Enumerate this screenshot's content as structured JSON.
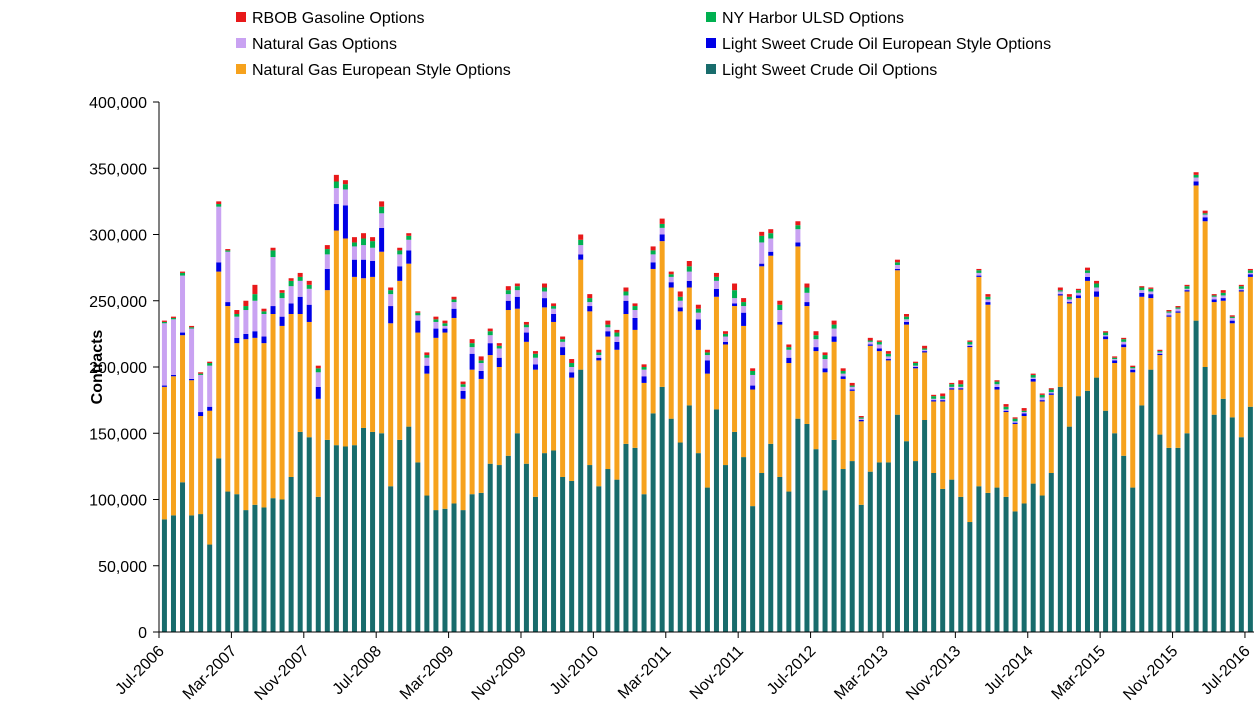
{
  "chart_data": {
    "type": "stacked_bar",
    "y_label": "Contracts",
    "categories": [
      "Jul-2006",
      null,
      null,
      null,
      null,
      null,
      null,
      null,
      "Mar-2007",
      null,
      null,
      null,
      null,
      null,
      null,
      null,
      "Nov-2007",
      null,
      null,
      null,
      null,
      null,
      null,
      null,
      "Jul-2008",
      null,
      null,
      null,
      null,
      null,
      null,
      null,
      "Mar-2009",
      null,
      null,
      null,
      null,
      null,
      null,
      null,
      "Nov-2009",
      null,
      null,
      null,
      null,
      null,
      null,
      null,
      "Jul-2010",
      null,
      null,
      null,
      null,
      null,
      null,
      null,
      "Mar-2011",
      null,
      null,
      null,
      null,
      null,
      null,
      null,
      "Nov-2011",
      null,
      null,
      null,
      null,
      null,
      null,
      null,
      "Jul-2012",
      null,
      null,
      null,
      null,
      null,
      null,
      null,
      "Mar-2013",
      null,
      null,
      null,
      null,
      null,
      null,
      null,
      "Nov-2013",
      null,
      null,
      null,
      null,
      null,
      null,
      null,
      "Jul-2014",
      null,
      null,
      null,
      null,
      null,
      null,
      null,
      "Mar-2015",
      null,
      null,
      null,
      null,
      null,
      null,
      null,
      "Nov-2015",
      null,
      null,
      null,
      null,
      null,
      null,
      null,
      "Jul-2016"
    ],
    "ylim": [
      0,
      400000
    ],
    "yticks": [
      0,
      {
        "value": 50000,
        "label": "50,000"
      },
      {
        "value": 100000,
        "label": "100,000"
      },
      {
        "value": 150000,
        "label": "150,000"
      },
      {
        "value": 200000,
        "label": "200,000"
      },
      {
        "value": 250000,
        "label": "250,000"
      },
      {
        "value": 300000,
        "label": "300,000"
      },
      {
        "value": 350000,
        "label": "350,000"
      },
      {
        "value": 400000,
        "label": "400,000"
      }
    ],
    "series": [
      {
        "name": "Light Sweet Crude Oil Options",
        "color": "#186c6c",
        "values": [
          85000,
          88000,
          113000,
          88000,
          89000,
          66000,
          131000,
          106000,
          104000,
          92000,
          96000,
          94000,
          101000,
          100000,
          117000,
          151000,
          147000,
          102000,
          145000,
          141000,
          140000,
          141000,
          154000,
          151000,
          150000,
          110000,
          145000,
          155000,
          128000,
          103000,
          92000,
          93000,
          97000,
          92000,
          104000,
          105000,
          127000,
          126000,
          133000,
          150000,
          127000,
          102000,
          135000,
          137000,
          117000,
          114000,
          198000,
          126000,
          110000,
          123000,
          115000,
          142000,
          139000,
          104000,
          165000,
          185000,
          161000,
          143000,
          171000,
          135000,
          109000,
          168000,
          126000,
          151000,
          132000,
          95000,
          120000,
          142000,
          117000,
          106000,
          161000,
          157000,
          138000,
          107000,
          145000,
          123000,
          129000,
          96000,
          121000,
          128000,
          128000,
          164000,
          144000,
          129000,
          160000,
          120000,
          108000,
          115000,
          102000,
          83000,
          110000,
          105000,
          109000,
          102000,
          91000,
          97000,
          112000,
          103000,
          120000,
          185000,
          155000,
          178000,
          182000,
          192000,
          167000,
          150000,
          133000,
          109000,
          171000,
          198000,
          149000,
          139000,
          139000,
          150000,
          235000,
          200000,
          164000,
          176000,
          162000,
          147000,
          170000
        ]
      },
      {
        "name": "Natural Gas European Style Options",
        "color": "#f6a21d",
        "values": [
          100000,
          105000,
          111000,
          102000,
          74000,
          101000,
          141000,
          140000,
          114000,
          129000,
          126000,
          124000,
          139000,
          131000,
          123000,
          89000,
          87000,
          74000,
          113000,
          162000,
          157000,
          127000,
          113000,
          117000,
          137000,
          123000,
          120000,
          123000,
          98000,
          92000,
          130000,
          133000,
          140000,
          84000,
          94000,
          86000,
          82000,
          74000,
          110000,
          94000,
          92000,
          96000,
          110000,
          97000,
          92000,
          78000,
          83000,
          116000,
          95000,
          100000,
          98000,
          98000,
          89000,
          84000,
          109000,
          110000,
          99000,
          99000,
          89000,
          93000,
          86000,
          85000,
          91000,
          95000,
          99000,
          88000,
          156000,
          142000,
          115000,
          97000,
          130000,
          89000,
          74000,
          89000,
          74000,
          68000,
          53000,
          63000,
          95000,
          84000,
          77000,
          109000,
          88000,
          70000,
          51000,
          54000,
          66000,
          68000,
          81000,
          132000,
          158000,
          142000,
          74000,
          64000,
          66000,
          66000,
          77000,
          71000,
          59000,
          69000,
          93000,
          74000,
          83000,
          61000,
          54000,
          53000,
          82000,
          87000,
          82000,
          54000,
          60000,
          99000,
          102000,
          107000,
          102000,
          110000,
          85000,
          74000,
          71000,
          110000,
          98000
        ]
      },
      {
        "name": "Light Sweet Crude Oil European Style Options",
        "color": "#0000e6",
        "values": [
          1000,
          1000,
          2000,
          1000,
          3000,
          3000,
          7000,
          3000,
          4000,
          4000,
          5000,
          5000,
          6000,
          7000,
          8000,
          13000,
          13000,
          9000,
          16000,
          20000,
          25000,
          13000,
          14000,
          12000,
          18000,
          13000,
          11000,
          10000,
          9000,
          6000,
          7000,
          3000,
          7000,
          6000,
          12000,
          6000,
          9000,
          7000,
          7000,
          9000,
          7000,
          4000,
          7000,
          6000,
          6000,
          4000,
          4000,
          4000,
          2000,
          4000,
          6000,
          10000,
          9000,
          5000,
          5000,
          5000,
          4000,
          3000,
          5000,
          8000,
          10000,
          6000,
          2000,
          2000,
          10000,
          3000,
          2000,
          3000,
          2000,
          4000,
          3000,
          3000,
          3000,
          3000,
          4000,
          2000,
          1000,
          1000,
          1000,
          2000,
          1000,
          1000,
          2000,
          1000,
          1000,
          1000,
          1000,
          1000,
          1000,
          1000,
          1000,
          2000,
          2000,
          1000,
          1000,
          2000,
          2000,
          1000,
          1000,
          1000,
          1000,
          2000,
          3000,
          4000,
          2000,
          2000,
          2000,
          2000,
          3000,
          3000,
          1000,
          1000,
          1000,
          1000,
          3000,
          3000,
          2000,
          2000,
          2000,
          1000,
          2000
        ]
      },
      {
        "name": "Natural Gas Options",
        "color": "#c9a2f2",
        "values": [
          47000,
          42000,
          43000,
          38000,
          28000,
          31000,
          42000,
          38000,
          16000,
          18000,
          23000,
          17000,
          37000,
          14000,
          13000,
          12000,
          12000,
          11000,
          11000,
          12000,
          12000,
          10000,
          11000,
          10000,
          11000,
          9000,
          9000,
          8000,
          4000,
          6000,
          5000,
          2000,
          5000,
          3000,
          5000,
          6000,
          6000,
          7000,
          5000,
          5000,
          4000,
          5000,
          5000,
          4000,
          4000,
          4000,
          7000,
          3000,
          2000,
          3000,
          4000,
          4000,
          6000,
          5000,
          6000,
          5000,
          4000,
          5000,
          7000,
          5000,
          4000,
          6000,
          4000,
          4000,
          5000,
          8000,
          16000,
          10000,
          9000,
          6000,
          10000,
          7000,
          6000,
          7000,
          6000,
          2000,
          2000,
          1000,
          2000,
          3000,
          2000,
          3000,
          2000,
          1000,
          1000,
          1000,
          1000,
          1000,
          1000,
          1000,
          2000,
          2000,
          2000,
          1000,
          1000,
          1000,
          1000,
          2000,
          1000,
          2000,
          2000,
          2000,
          3000,
          3000,
          1000,
          1000,
          2000,
          1000,
          2000,
          2000,
          1000,
          2000,
          2000,
          1000,
          3000,
          2000,
          2000,
          2000,
          2000,
          1000,
          1000
        ]
      },
      {
        "name": "NY Harbor ULSD Options",
        "color": "#00b050",
        "values": [
          1000,
          1000,
          2000,
          1000,
          1000,
          2000,
          2000,
          1000,
          2000,
          3000,
          5000,
          2000,
          5000,
          4000,
          4000,
          3000,
          3000,
          3000,
          4000,
          5000,
          4000,
          3000,
          5000,
          5000,
          5000,
          3000,
          3000,
          3000,
          2000,
          2000,
          2000,
          2000,
          2000,
          2000,
          3000,
          2000,
          3000,
          2000,
          3000,
          3000,
          2000,
          3000,
          3000,
          2000,
          2000,
          3000,
          4000,
          3000,
          2000,
          2000,
          3000,
          3000,
          3000,
          2000,
          3000,
          3000,
          2000,
          3000,
          4000,
          3000,
          2000,
          3000,
          2000,
          6000,
          3000,
          3000,
          5000,
          4000,
          4000,
          2000,
          3000,
          4000,
          3000,
          3000,
          3000,
          2000,
          1000,
          1000,
          1000,
          2000,
          2000,
          2000,
          2000,
          2000,
          1000,
          2000,
          2000,
          2000,
          2000,
          2000,
          2000,
          2000,
          2000,
          2000,
          2000,
          1000,
          2000,
          2000,
          2000,
          1000,
          2000,
          2000,
          2000,
          3000,
          2000,
          1000,
          2000,
          1000,
          2000,
          2000,
          1000,
          1000,
          1000,
          2000,
          2000,
          1000,
          1000,
          2000,
          1000,
          2000,
          2000
        ]
      },
      {
        "name": "RBOB Gasoline Options",
        "color": "#e8191a",
        "values": [
          1000,
          1000,
          1000,
          1000,
          1000,
          1000,
          2000,
          1000,
          3000,
          4000,
          7000,
          2000,
          2000,
          2000,
          2000,
          3000,
          3000,
          2000,
          3000,
          5000,
          3000,
          4000,
          4000,
          3000,
          4000,
          2000,
          2000,
          2000,
          1000,
          2000,
          2000,
          2000,
          2000,
          2000,
          3000,
          3000,
          2000,
          2000,
          3000,
          2000,
          2000,
          2000,
          3000,
          2000,
          2000,
          3000,
          4000,
          3000,
          2000,
          3000,
          2000,
          3000,
          2000,
          2000,
          3000,
          4000,
          2000,
          4000,
          4000,
          3000,
          2000,
          3000,
          2000,
          5000,
          3000,
          2000,
          3000,
          3000,
          3000,
          2000,
          3000,
          3000,
          3000,
          2000,
          3000,
          2000,
          2000,
          1000,
          2000,
          1000,
          2000,
          2000,
          2000,
          1000,
          2000,
          1000,
          2000,
          1000,
          3000,
          1000,
          1000,
          2000,
          1000,
          2000,
          1000,
          2000,
          1000,
          1000,
          1000,
          2000,
          2000,
          1000,
          2000,
          2000,
          1000,
          1000,
          1000,
          1000,
          1000,
          1000,
          1000,
          1000,
          1000,
          1000,
          2000,
          2000,
          1000,
          2000,
          1000,
          1000,
          1000
        ]
      }
    ]
  }
}
